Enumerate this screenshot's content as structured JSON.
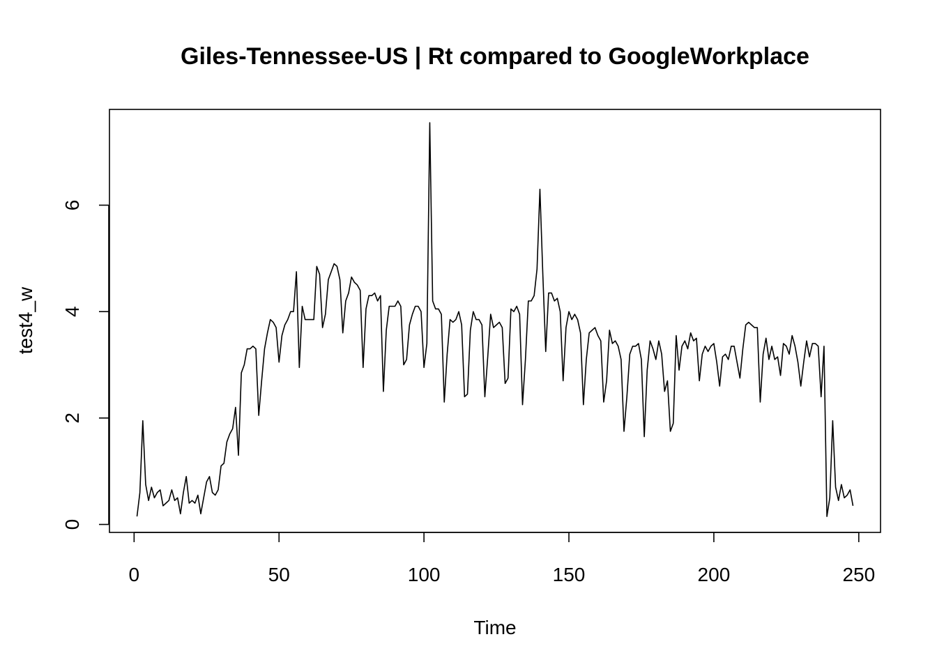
{
  "chart_data": {
    "type": "line",
    "title": "Giles-Tennessee-US | Rt compared to GoogleWorkplace",
    "xlabel": "Time",
    "ylabel": "test4_w",
    "xlim": [
      -8.5,
      257.5
    ],
    "ylim": [
      -0.15,
      7.8
    ],
    "x_ticks": [
      0,
      50,
      100,
      150,
      200,
      250
    ],
    "y_ticks": [
      0,
      2,
      4,
      6
    ],
    "grid": false,
    "legend": "none",
    "line_color": "#000000",
    "series": [
      {
        "x_start": 1,
        "values": [
          0.15,
          0.6,
          1.95,
          0.75,
          0.45,
          0.7,
          0.5,
          0.6,
          0.65,
          0.35,
          0.4,
          0.45,
          0.65,
          0.45,
          0.5,
          0.2,
          0.6,
          0.9,
          0.4,
          0.45,
          0.4,
          0.55,
          0.2,
          0.5,
          0.8,
          0.9,
          0.6,
          0.55,
          0.65,
          1.1,
          1.15,
          1.55,
          1.7,
          1.8,
          2.2,
          1.3,
          2.85,
          3.0,
          3.3,
          3.3,
          3.35,
          3.3,
          2.05,
          2.7,
          3.3,
          3.6,
          3.85,
          3.8,
          3.7,
          3.05,
          3.55,
          3.75,
          3.85,
          4.0,
          4.0,
          4.75,
          2.95,
          4.1,
          3.85,
          3.85,
          3.85,
          3.85,
          4.85,
          4.7,
          3.7,
          3.95,
          4.6,
          4.75,
          4.9,
          4.85,
          4.6,
          3.6,
          4.2,
          4.35,
          4.65,
          4.55,
          4.5,
          4.4,
          2.95,
          4.05,
          4.3,
          4.3,
          4.35,
          4.2,
          4.3,
          2.5,
          3.65,
          4.1,
          4.1,
          4.1,
          4.2,
          4.1,
          3.0,
          3.1,
          3.75,
          3.95,
          4.1,
          4.1,
          4.0,
          2.95,
          3.4,
          7.55,
          4.2,
          4.05,
          4.05,
          3.95,
          2.3,
          3.2,
          3.85,
          3.8,
          3.85,
          4.0,
          3.75,
          2.4,
          2.45,
          3.65,
          4.0,
          3.85,
          3.85,
          3.75,
          2.4,
          3.15,
          3.95,
          3.7,
          3.75,
          3.8,
          3.7,
          2.65,
          2.75,
          4.05,
          4.0,
          4.1,
          3.95,
          2.25,
          3.1,
          4.2,
          4.2,
          4.3,
          4.8,
          6.3,
          4.7,
          3.25,
          4.35,
          4.35,
          4.2,
          4.25,
          4.0,
          2.7,
          3.7,
          4.0,
          3.85,
          3.95,
          3.85,
          3.6,
          2.25,
          3.1,
          3.6,
          3.65,
          3.7,
          3.55,
          3.45,
          2.3,
          2.7,
          3.65,
          3.4,
          3.45,
          3.35,
          3.1,
          1.75,
          2.4,
          3.2,
          3.35,
          3.35,
          3.4,
          3.1,
          1.65,
          2.9,
          3.45,
          3.3,
          3.1,
          3.45,
          3.2,
          2.5,
          2.7,
          1.75,
          1.9,
          3.55,
          2.9,
          3.35,
          3.45,
          3.3,
          3.6,
          3.45,
          3.5,
          2.7,
          3.2,
          3.35,
          3.25,
          3.35,
          3.4,
          3.05,
          2.6,
          3.15,
          3.2,
          3.1,
          3.35,
          3.35,
          3.05,
          2.75,
          3.3,
          3.75,
          3.8,
          3.75,
          3.7,
          3.7,
          2.3,
          3.2,
          3.5,
          3.1,
          3.35,
          3.1,
          3.15,
          2.8,
          3.4,
          3.35,
          3.2,
          3.55,
          3.35,
          3.05,
          2.6,
          3.05,
          3.45,
          3.15,
          3.4,
          3.4,
          3.35,
          2.4,
          3.35,
          0.15,
          0.5,
          1.95,
          0.7,
          0.45,
          0.75,
          0.5,
          0.55,
          0.65,
          0.35
        ]
      }
    ]
  }
}
